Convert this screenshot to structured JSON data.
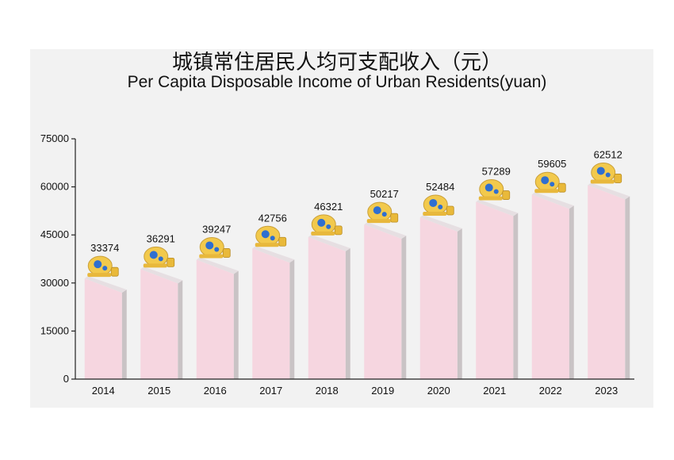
{
  "title_cn": "城镇常住居民人均可支配收入（元）",
  "title_en": "Per Capita Disposable Income of Urban Residents(yuan)",
  "colors": {
    "bar_front": "#f6d6e0",
    "bar_side": "#c9c3c5",
    "bar_top": "#e6dfe2",
    "axis": "#222222",
    "panel": "#f2f2f2",
    "emblem_gold": "#f2c94c",
    "emblem_blue": "#2f6fd0"
  },
  "chart_data": {
    "type": "bar",
    "categories": [
      "2014",
      "2015",
      "2016",
      "2017",
      "2018",
      "2019",
      "2020",
      "2021",
      "2022",
      "2023"
    ],
    "values": [
      33374,
      36291,
      39247,
      42756,
      46321,
      50217,
      52484,
      57289,
      59605,
      62512
    ],
    "yticks": [
      "0",
      "15000",
      "30000",
      "45000",
      "60000",
      "75000"
    ],
    "ylim": [
      0,
      75000
    ]
  }
}
